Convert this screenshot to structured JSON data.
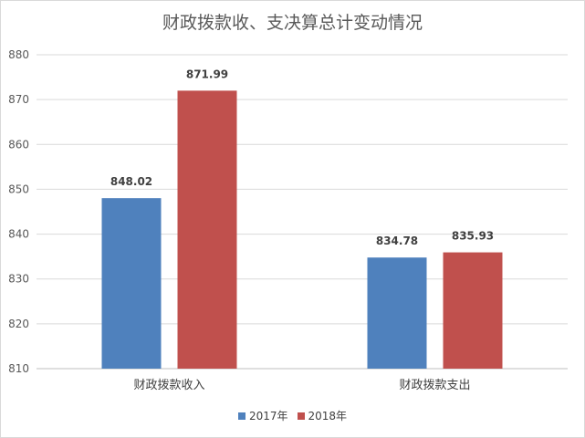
{
  "chart_data": {
    "type": "bar",
    "title": "财政拨款收、支决算总计变动情况",
    "categories": [
      "财政拨款收入",
      "财政拨款支出"
    ],
    "series": [
      {
        "name": "2017年",
        "values": [
          848.02,
          834.78
        ],
        "color": "#4f81bd"
      },
      {
        "name": "2018年",
        "values": [
          871.99,
          835.93
        ],
        "color": "#c0504d"
      }
    ],
    "ylim": [
      810,
      880
    ],
    "yticks": [
      810,
      820,
      830,
      840,
      850,
      860,
      870,
      880
    ],
    "grid": true,
    "legend_position": "bottom"
  }
}
